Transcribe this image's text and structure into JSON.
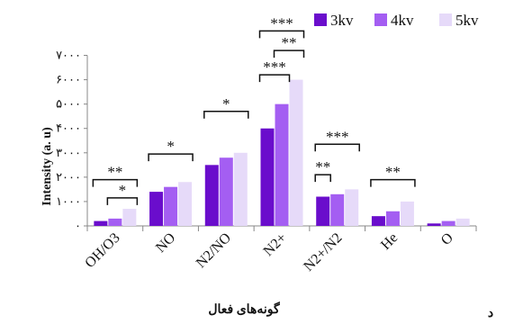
{
  "chart_data": {
    "type": "bar",
    "categories": [
      "OH/O3",
      "NO",
      "N2/NO",
      "N2+",
      "N2+/N2",
      "He",
      "O"
    ],
    "series": [
      {
        "name": "3kv",
        "color": "#6a0dcc",
        "values": [
          200,
          1400,
          2500,
          4000,
          1200,
          400,
          100
        ]
      },
      {
        "name": "4kv",
        "color": "#a45ef2",
        "values": [
          300,
          1600,
          2800,
          5000,
          1300,
          600,
          200
        ]
      },
      {
        "name": "5kv",
        "color": "#e6daf9",
        "values": [
          700,
          1800,
          3000,
          6000,
          1500,
          1000,
          300
        ]
      }
    ],
    "ylabel": "Intensity (a. u)",
    "xlabel": "گونه‌های فعال",
    "ylim": [
      0,
      7000
    ],
    "yticks": [
      0,
      1000,
      2000,
      3000,
      4000,
      5000,
      6000,
      7000
    ],
    "ytick_labels": [
      "۰",
      "۱۰۰۰",
      "۲۰۰۰",
      "۳۰۰۰",
      "۴۰۰۰",
      "۵۰۰۰",
      "۶۰۰۰",
      "۷۰۰۰"
    ],
    "legend_position": "top-right",
    "grid": false,
    "significance": [
      {
        "category": 0,
        "from_series": 0,
        "to_series": 2,
        "level": 1900,
        "label": "**"
      },
      {
        "category": 0,
        "from_series": 1,
        "to_series": 2,
        "level": 1150,
        "label": "*"
      },
      {
        "category": 1,
        "from_series": 0,
        "to_series": 2,
        "level": 2950,
        "label": "*"
      },
      {
        "category": 2,
        "from_series": 0,
        "to_series": 2,
        "level": 4700,
        "label": "*"
      },
      {
        "category": 3,
        "from_series": 0,
        "to_series": 2,
        "level": 8000,
        "label": "***"
      },
      {
        "category": 3,
        "from_series": 1,
        "to_series": 2,
        "level": 7200,
        "label": "**"
      },
      {
        "category": 3,
        "from_series": 0,
        "to_series": 1,
        "level": 6200,
        "label": "***"
      },
      {
        "category": 4,
        "from_series": 0,
        "to_series": 2,
        "level": 3350,
        "label": "***"
      },
      {
        "category": 4,
        "from_series": 0,
        "to_series": 0,
        "level": 2100,
        "label": "**"
      },
      {
        "category": 5,
        "from_series": 0,
        "to_series": 2,
        "level": 1900,
        "label": "**"
      }
    ],
    "panel_label": "د"
  }
}
